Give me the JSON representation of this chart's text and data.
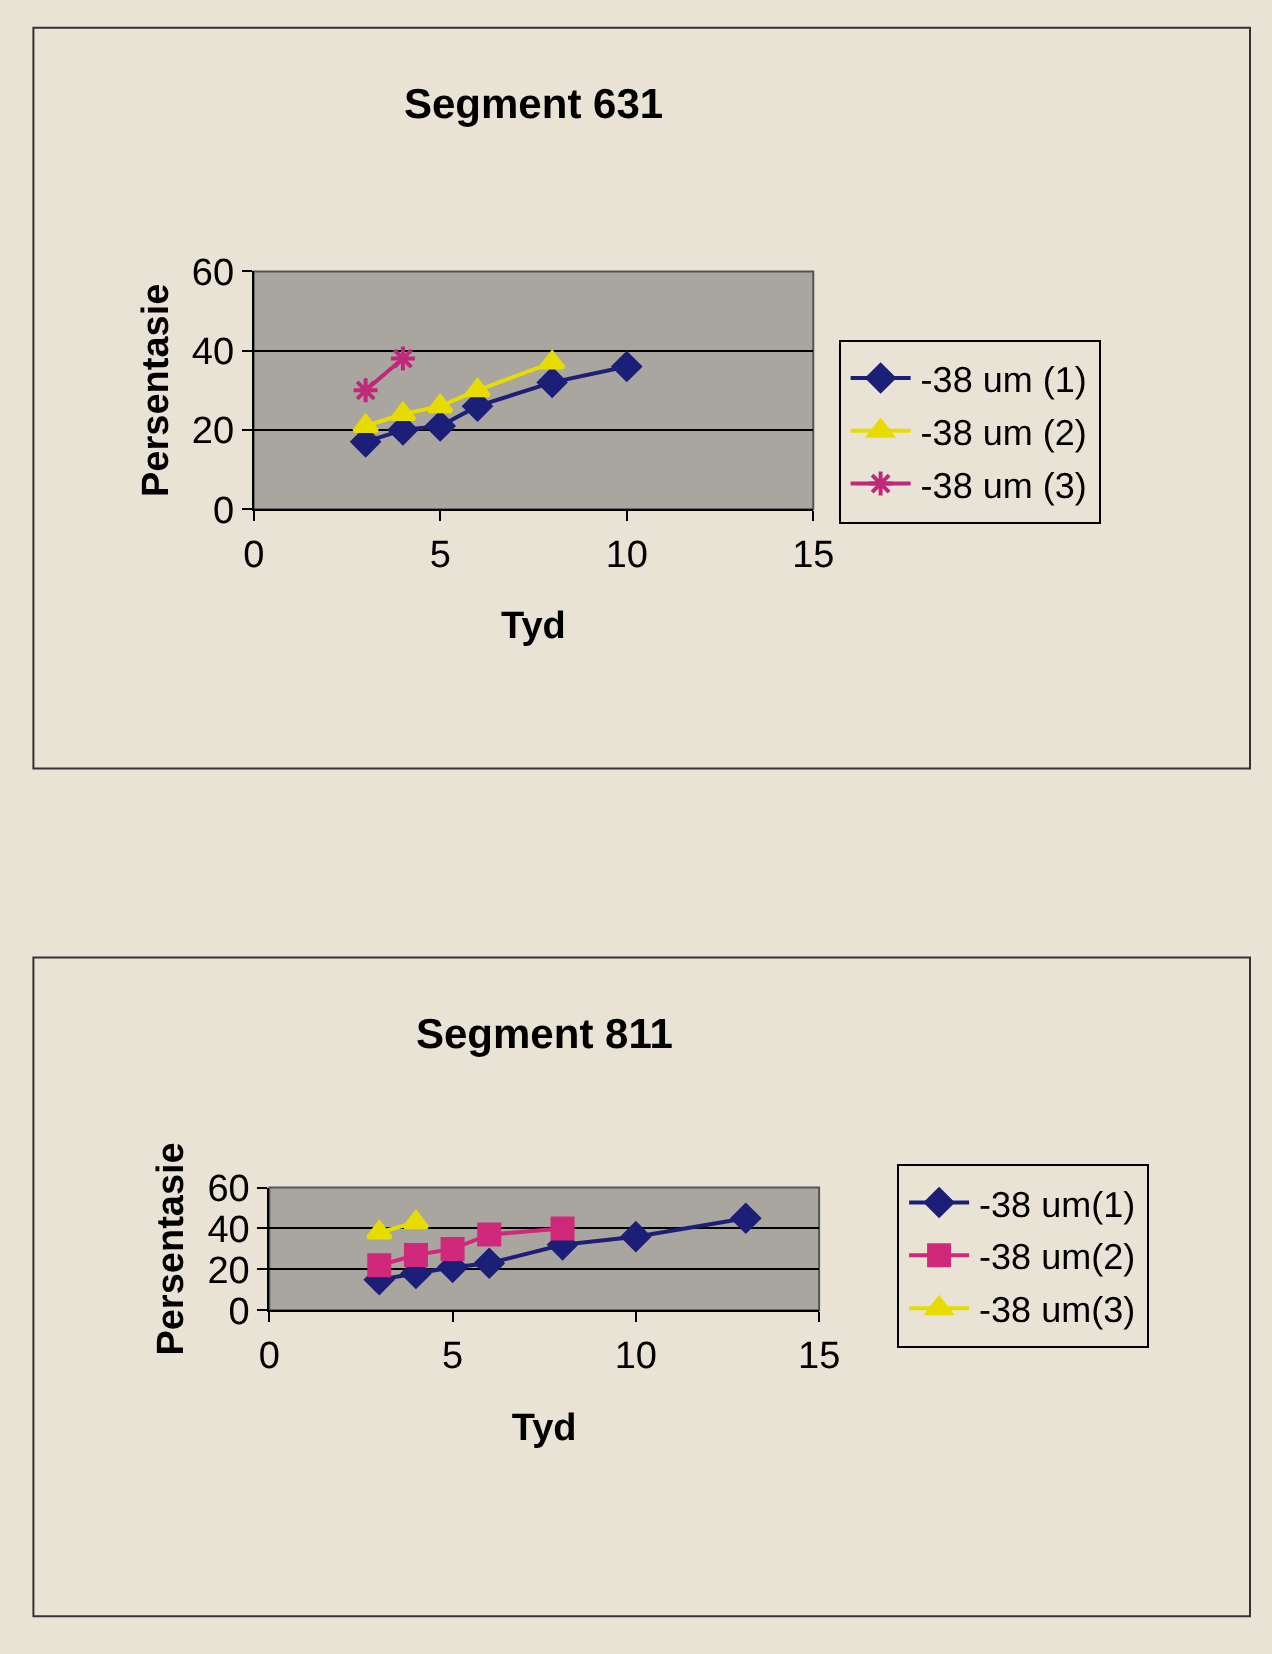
{
  "chart_data": [
    {
      "type": "line",
      "title": "Segment 631",
      "xlabel": "Tyd",
      "ylabel": "Persentasie",
      "xlim": [
        0,
        15
      ],
      "xticks": [
        0,
        5,
        10,
        15
      ],
      "ylim": [
        0,
        60
      ],
      "yticks": [
        0,
        20,
        40,
        60
      ],
      "grid": "y",
      "legend": "right",
      "series": [
        {
          "name": "-38 um (1)",
          "color": "#1c1f78",
          "marker": "diamond",
          "x": [
            3,
            4,
            5,
            6,
            8,
            10
          ],
          "values": [
            17,
            20,
            21,
            26,
            32,
            36
          ]
        },
        {
          "name": "-38 um (2)",
          "color": "#e6dc00",
          "marker": "triangle",
          "x": [
            3,
            4,
            5,
            6,
            8
          ],
          "values": [
            21,
            24,
            26,
            30,
            37
          ]
        },
        {
          "name": "-38 um (3)",
          "color": "#c0287a",
          "marker": "cross",
          "x": [
            3,
            4
          ],
          "values": [
            30,
            38
          ]
        }
      ]
    },
    {
      "type": "line",
      "title": "Segment 811",
      "xlabel": "Tyd",
      "ylabel": "Persentasie",
      "xlim": [
        0,
        15
      ],
      "xticks": [
        0,
        5,
        10,
        15
      ],
      "ylim": [
        0,
        60
      ],
      "yticks": [
        0,
        20,
        40,
        60
      ],
      "grid": "y",
      "legend": "right",
      "series": [
        {
          "name": "-38 um(1)",
          "color": "#1c1f78",
          "marker": "diamond",
          "x": [
            3,
            4,
            5,
            6,
            8,
            10,
            13
          ],
          "values": [
            15,
            18,
            21,
            23,
            32,
            36,
            45
          ]
        },
        {
          "name": "-38 um(2)",
          "color": "#d0287a",
          "marker": "square",
          "x": [
            3,
            4,
            5,
            6,
            8
          ],
          "values": [
            22,
            27,
            30,
            37,
            40
          ]
        },
        {
          "name": "-38 um(3)",
          "color": "#e6dc00",
          "marker": "triangle",
          "x": [
            3,
            4
          ],
          "values": [
            38,
            43
          ]
        }
      ]
    }
  ]
}
